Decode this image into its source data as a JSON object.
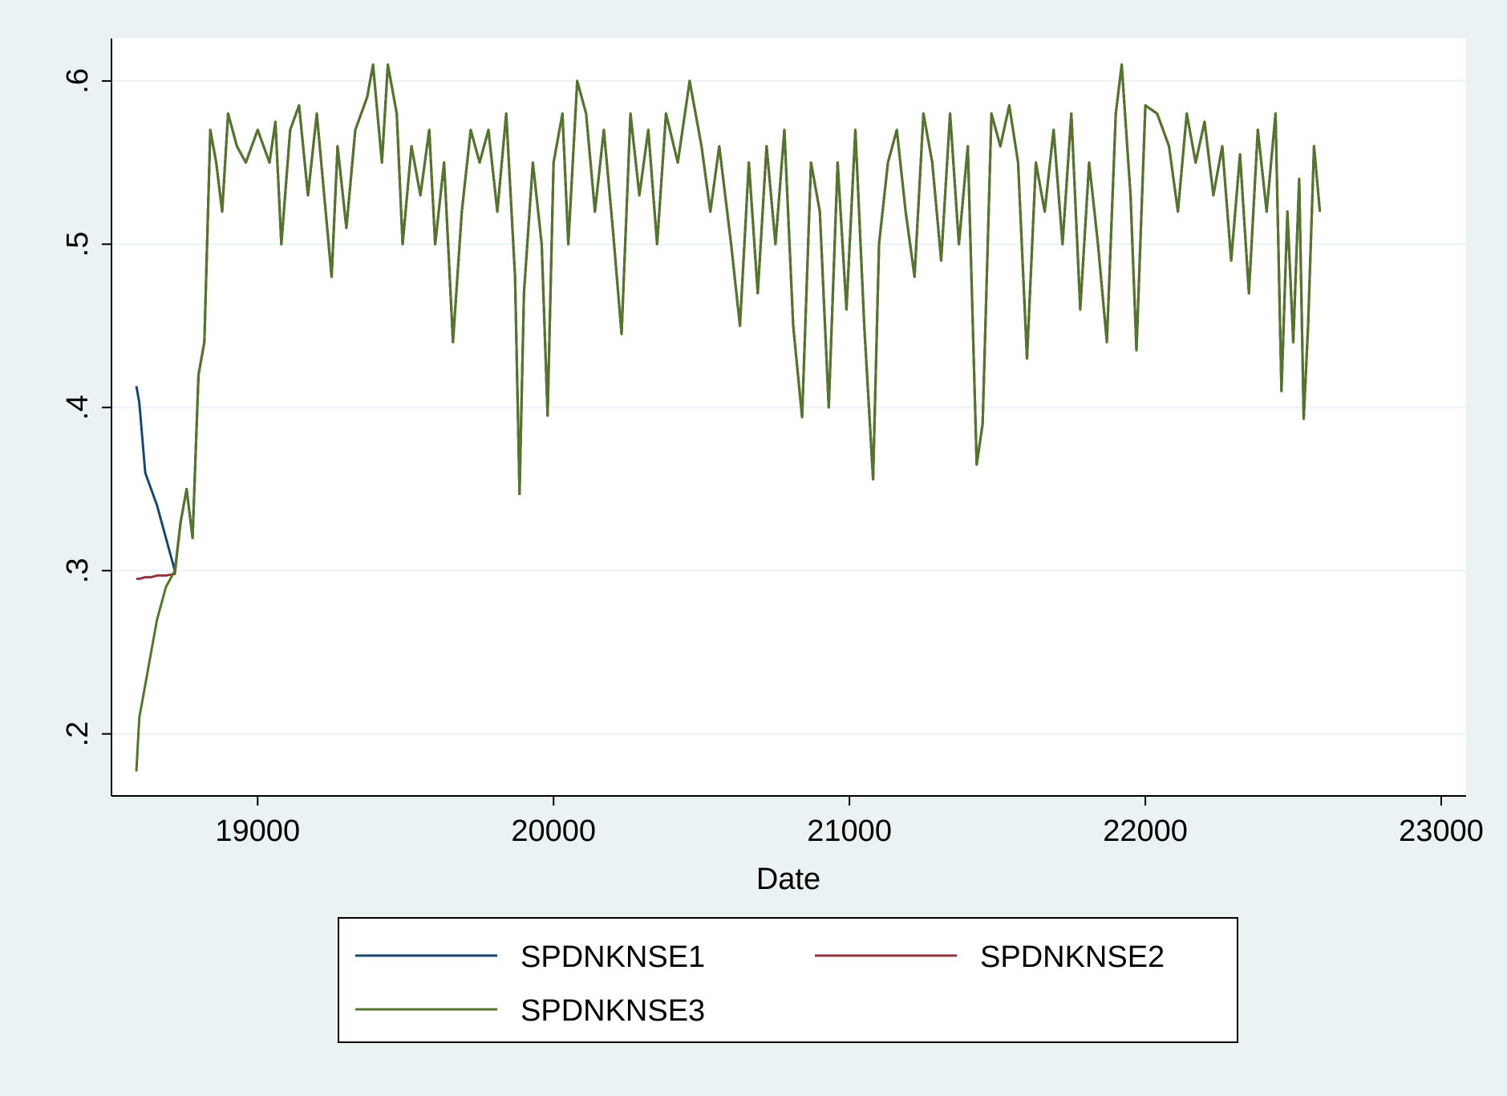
{
  "chart_data": {
    "type": "line",
    "x_label": "Date",
    "x": [
      18590,
      18600,
      18620,
      18640,
      18660,
      18690,
      18720,
      18740,
      18760,
      18780,
      18800,
      18820,
      18840,
      18860,
      18880,
      18900,
      18930,
      18960,
      19000,
      19040,
      19060,
      19080,
      19110,
      19140,
      19170,
      19200,
      19230,
      19250,
      19270,
      19300,
      19330,
      19370,
      19390,
      19420,
      19440,
      19470,
      19490,
      19520,
      19550,
      19580,
      19600,
      19630,
      19660,
      19690,
      19720,
      19750,
      19780,
      19810,
      19840,
      19870,
      19885,
      19900,
      19930,
      19960,
      19980,
      20000,
      20030,
      20050,
      20080,
      20110,
      20140,
      20170,
      20200,
      20230,
      20260,
      20290,
      20320,
      20350,
      20380,
      20420,
      20460,
      20500,
      20530,
      20560,
      20600,
      20630,
      20660,
      20690,
      20720,
      20750,
      20780,
      20810,
      20840,
      20870,
      20900,
      20930,
      20960,
      20990,
      21020,
      21050,
      21080,
      21100,
      21130,
      21160,
      21190,
      21220,
      21250,
      21280,
      21310,
      21340,
      21370,
      21400,
      21430,
      21450,
      21480,
      21510,
      21540,
      21570,
      21600,
      21630,
      21660,
      21690,
      21720,
      21750,
      21780,
      21810,
      21840,
      21870,
      21900,
      21920,
      21950,
      21970,
      22000,
      22040,
      22080,
      22110,
      22140,
      22170,
      22200,
      22230,
      22260,
      22290,
      22320,
      22350,
      22380,
      22410,
      22440,
      22460,
      22480,
      22500,
      22520,
      22535,
      22550,
      22570,
      22590
    ],
    "series": [
      {
        "name": "SPDNKNSE1",
        "color": "#1a476f",
        "values": [
          0.413,
          0.403,
          0.36,
          0.35,
          0.34,
          0.32,
          0.3,
          0.33,
          0.35,
          0.32,
          0.42,
          0.44,
          0.57,
          0.55,
          0.52,
          0.58,
          0.56,
          0.55,
          0.57,
          0.55,
          0.575,
          0.5,
          0.57,
          0.585,
          0.53,
          0.58,
          0.52,
          0.48,
          0.56,
          0.51,
          0.57,
          0.59,
          0.61,
          0.55,
          0.61,
          0.58,
          0.5,
          0.56,
          0.53,
          0.57,
          0.5,
          0.55,
          0.44,
          0.52,
          0.57,
          0.55,
          0.57,
          0.52,
          0.58,
          0.48,
          0.347,
          0.47,
          0.55,
          0.5,
          0.395,
          0.55,
          0.58,
          0.5,
          0.6,
          0.58,
          0.52,
          0.57,
          0.51,
          0.445,
          0.58,
          0.53,
          0.57,
          0.5,
          0.58,
          0.55,
          0.6,
          0.56,
          0.52,
          0.56,
          0.5,
          0.45,
          0.55,
          0.47,
          0.56,
          0.5,
          0.57,
          0.45,
          0.394,
          0.55,
          0.52,
          0.4,
          0.55,
          0.46,
          0.57,
          0.45,
          0.356,
          0.5,
          0.55,
          0.57,
          0.52,
          0.48,
          0.58,
          0.55,
          0.49,
          0.58,
          0.5,
          0.56,
          0.365,
          0.39,
          0.58,
          0.56,
          0.585,
          0.55,
          0.43,
          0.55,
          0.52,
          0.57,
          0.5,
          0.58,
          0.46,
          0.55,
          0.5,
          0.44,
          0.58,
          0.61,
          0.53,
          0.435,
          0.585,
          0.58,
          0.56,
          0.52,
          0.58,
          0.55,
          0.575,
          0.53,
          0.56,
          0.49,
          0.555,
          0.47,
          0.57,
          0.52,
          0.58,
          0.41,
          0.52,
          0.44,
          0.54,
          0.393,
          0.45,
          0.56,
          0.52
        ]
      },
      {
        "name": "SPDNKNSE2",
        "color": "#90353b",
        "values": [
          0.295,
          0.295,
          0.296,
          0.296,
          0.297,
          0.297,
          0.298,
          0.33,
          0.35,
          0.32,
          0.42,
          0.44,
          0.57,
          0.55,
          0.52,
          0.58,
          0.56,
          0.55,
          0.57,
          0.55,
          0.575,
          0.5,
          0.57,
          0.585,
          0.53,
          0.58,
          0.52,
          0.48,
          0.56,
          0.51,
          0.57,
          0.59,
          0.61,
          0.55,
          0.61,
          0.58,
          0.5,
          0.56,
          0.53,
          0.57,
          0.5,
          0.55,
          0.44,
          0.52,
          0.57,
          0.55,
          0.57,
          0.52,
          0.58,
          0.48,
          0.347,
          0.47,
          0.55,
          0.5,
          0.395,
          0.55,
          0.58,
          0.5,
          0.6,
          0.58,
          0.52,
          0.57,
          0.51,
          0.445,
          0.58,
          0.53,
          0.57,
          0.5,
          0.58,
          0.55,
          0.6,
          0.56,
          0.52,
          0.56,
          0.5,
          0.45,
          0.55,
          0.47,
          0.56,
          0.5,
          0.57,
          0.45,
          0.394,
          0.55,
          0.52,
          0.4,
          0.55,
          0.46,
          0.57,
          0.45,
          0.356,
          0.5,
          0.55,
          0.57,
          0.52,
          0.48,
          0.58,
          0.55,
          0.49,
          0.58,
          0.5,
          0.56,
          0.365,
          0.39,
          0.58,
          0.56,
          0.585,
          0.55,
          0.43,
          0.55,
          0.52,
          0.57,
          0.5,
          0.58,
          0.46,
          0.55,
          0.5,
          0.44,
          0.58,
          0.61,
          0.53,
          0.435,
          0.585,
          0.58,
          0.56,
          0.52,
          0.58,
          0.55,
          0.575,
          0.53,
          0.56,
          0.49,
          0.555,
          0.47,
          0.57,
          0.52,
          0.58,
          0.41,
          0.52,
          0.44,
          0.54,
          0.393,
          0.45,
          0.56,
          0.52
        ]
      },
      {
        "name": "SPDNKNSE3",
        "color": "#55752f",
        "values": [
          0.177,
          0.21,
          0.23,
          0.25,
          0.27,
          0.29,
          0.3,
          0.33,
          0.35,
          0.32,
          0.42,
          0.44,
          0.57,
          0.55,
          0.52,
          0.58,
          0.56,
          0.55,
          0.57,
          0.55,
          0.575,
          0.5,
          0.57,
          0.585,
          0.53,
          0.58,
          0.52,
          0.48,
          0.56,
          0.51,
          0.57,
          0.59,
          0.61,
          0.55,
          0.61,
          0.58,
          0.5,
          0.56,
          0.53,
          0.57,
          0.5,
          0.55,
          0.44,
          0.52,
          0.57,
          0.55,
          0.57,
          0.52,
          0.58,
          0.48,
          0.347,
          0.47,
          0.55,
          0.5,
          0.395,
          0.55,
          0.58,
          0.5,
          0.6,
          0.58,
          0.52,
          0.57,
          0.51,
          0.445,
          0.58,
          0.53,
          0.57,
          0.5,
          0.58,
          0.55,
          0.6,
          0.56,
          0.52,
          0.56,
          0.5,
          0.45,
          0.55,
          0.47,
          0.56,
          0.5,
          0.57,
          0.45,
          0.394,
          0.55,
          0.52,
          0.4,
          0.55,
          0.46,
          0.57,
          0.45,
          0.356,
          0.5,
          0.55,
          0.57,
          0.52,
          0.48,
          0.58,
          0.55,
          0.49,
          0.58,
          0.5,
          0.56,
          0.365,
          0.39,
          0.58,
          0.56,
          0.585,
          0.55,
          0.43,
          0.55,
          0.52,
          0.57,
          0.5,
          0.58,
          0.46,
          0.55,
          0.5,
          0.44,
          0.58,
          0.61,
          0.53,
          0.435,
          0.585,
          0.58,
          0.56,
          0.52,
          0.58,
          0.55,
          0.575,
          0.53,
          0.56,
          0.49,
          0.555,
          0.47,
          0.57,
          0.52,
          0.58,
          0.41,
          0.52,
          0.44,
          0.54,
          0.393,
          0.45,
          0.56,
          0.52
        ]
      }
    ],
    "xlim": [
      18506,
      23084
    ],
    "xticks": [
      19000,
      20000,
      21000,
      22000,
      23000
    ],
    "ylim": [
      0.162,
      0.626
    ],
    "yticks": [
      {
        "value": 0.2,
        "label": ".2"
      },
      {
        "value": 0.3,
        "label": ".3"
      },
      {
        "value": 0.4,
        "label": ".4"
      },
      {
        "value": 0.5,
        "label": ".5"
      },
      {
        "value": 0.6,
        "label": ".6"
      }
    ],
    "grid": true,
    "legend": "bottom"
  }
}
